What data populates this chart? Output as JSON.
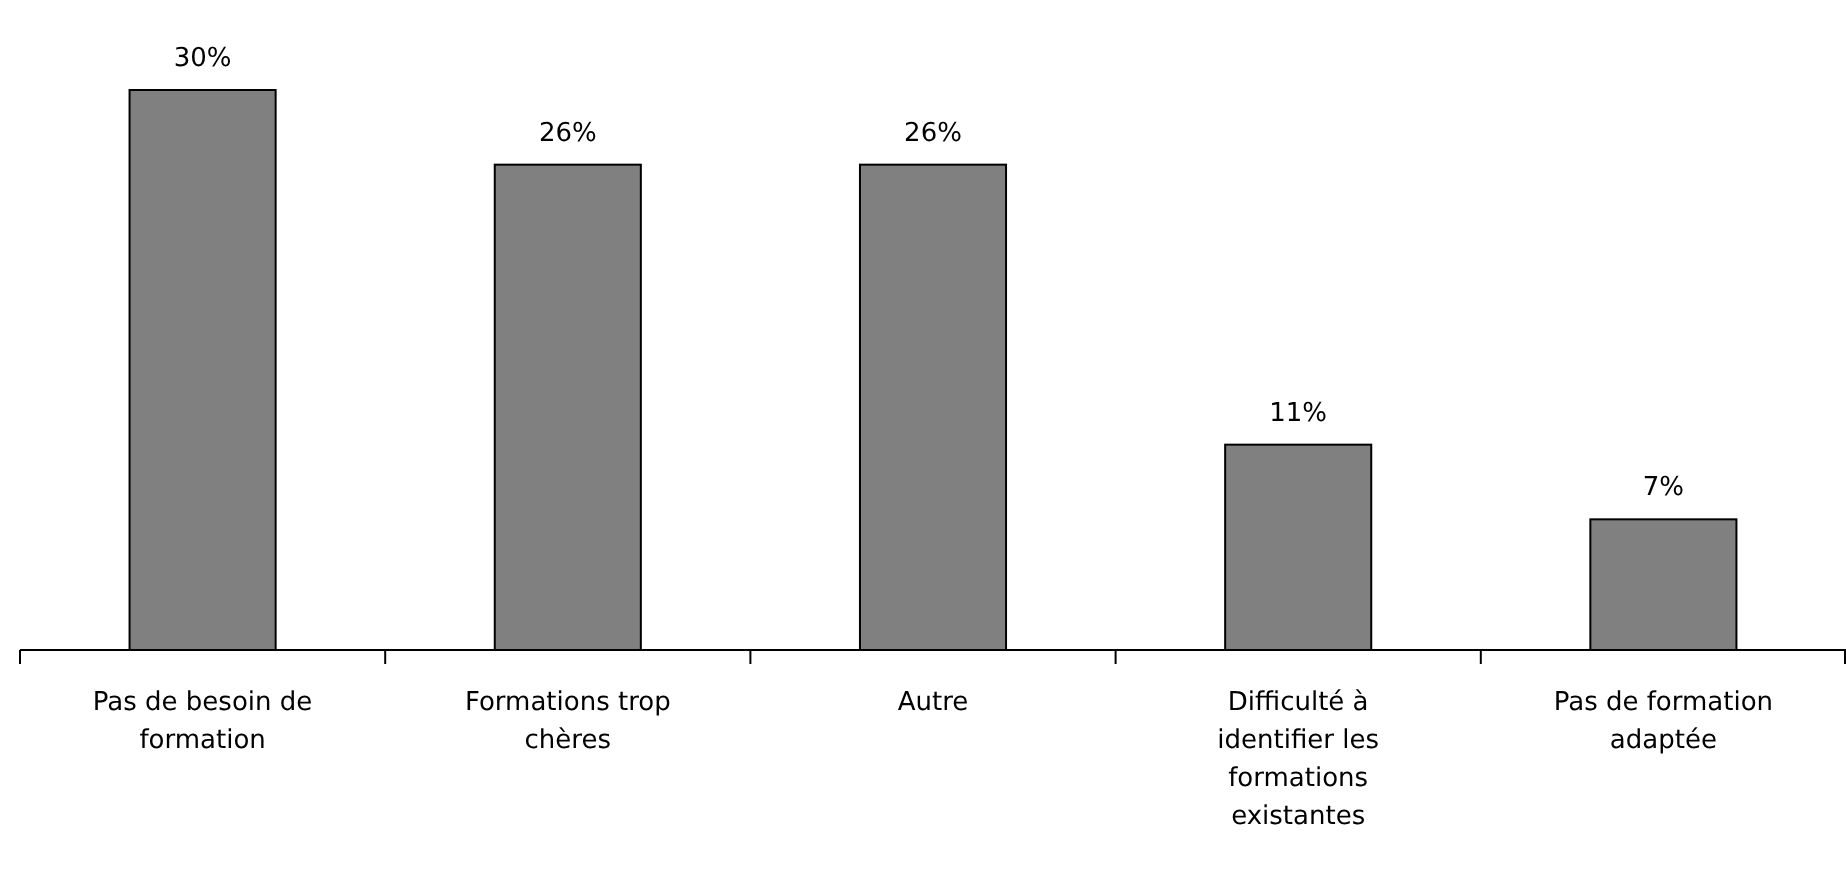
{
  "chart_data": {
    "type": "bar",
    "categories": [
      "Pas de besoin de formation",
      "Formations trop chères",
      "Autre",
      "Difficulté à identifier les formations existantes",
      "Pas de formation adaptée"
    ],
    "values": [
      30,
      26,
      26,
      11,
      7
    ],
    "color": "#808080",
    "value_labels": [
      "30%",
      "26%",
      "26%",
      "11%",
      "7%"
    ]
  }
}
